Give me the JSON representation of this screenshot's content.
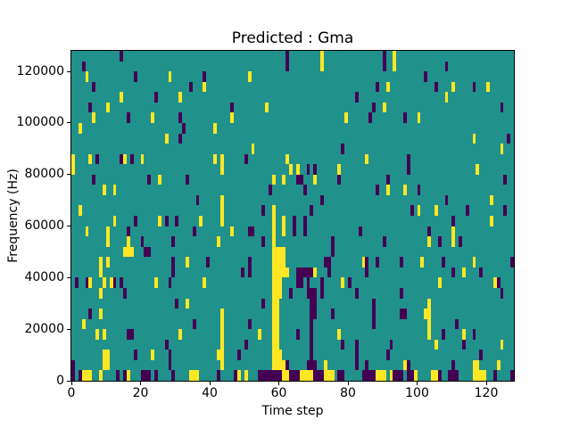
{
  "figure": {
    "title": "Predicted : Gma",
    "xlabel": "Time step",
    "ylabel": "Frequency (Hz)",
    "background_color": "#ffffff"
  },
  "chart_data": {
    "type": "heatmap",
    "title": "Predicted : Gma",
    "xlabel": "Time step",
    "ylabel": "Frequency (Hz)",
    "x_range": [
      0,
      128
    ],
    "y_range": [
      0,
      128000
    ],
    "x_ticks": [
      0,
      20,
      40,
      60,
      80,
      100,
      120
    ],
    "x_tick_labels": [
      "0",
      "20",
      "40",
      "60",
      "80",
      "100",
      "120"
    ],
    "y_ticks": [
      0,
      20000,
      40000,
      60000,
      80000,
      100000,
      120000
    ],
    "y_tick_labels": [
      "0",
      "20000",
      "40000",
      "60000",
      "80000",
      "100000",
      "120000"
    ],
    "grid": {
      "cols": 128,
      "rows": 32,
      "hz_per_row": 4000
    },
    "legend": "none",
    "gridlines": false,
    "colormap": {
      "name": "viridis-3-level",
      "background_value_color": "#21918c",
      "low": "#440154",
      "high": "#fde725"
    },
    "cells_high": [
      [
        72,
        31
      ],
      [
        93,
        31
      ],
      [
        72,
        30
      ],
      [
        93,
        30
      ],
      [
        4,
        29
      ],
      [
        28,
        29
      ],
      [
        51,
        29
      ],
      [
        38,
        28
      ],
      [
        91,
        28
      ],
      [
        110,
        28
      ],
      [
        120,
        28
      ],
      [
        14,
        27
      ],
      [
        31,
        27
      ],
      [
        108,
        27
      ],
      [
        10,
        26
      ],
      [
        56,
        26
      ],
      [
        90,
        26
      ],
      [
        6,
        25
      ],
      [
        23,
        25
      ],
      [
        46,
        25
      ],
      [
        79,
        25
      ],
      [
        100,
        25
      ],
      [
        2,
        24
      ],
      [
        41,
        24
      ],
      [
        27,
        23
      ],
      [
        116,
        23
      ],
      [
        52,
        22
      ],
      [
        124,
        22
      ],
      [
        0,
        21
      ],
      [
        5,
        21
      ],
      [
        15,
        21
      ],
      [
        20,
        21
      ],
      [
        41,
        21
      ],
      [
        43,
        21
      ],
      [
        62,
        21
      ],
      [
        85,
        21
      ],
      [
        0,
        20
      ],
      [
        43,
        20
      ],
      [
        63,
        20
      ],
      [
        65,
        20
      ],
      [
        77,
        20
      ],
      [
        117,
        20
      ],
      [
        25,
        19
      ],
      [
        58,
        19
      ],
      [
        61,
        19
      ],
      [
        70,
        19
      ],
      [
        9,
        18
      ],
      [
        12,
        18
      ],
      [
        91,
        18
      ],
      [
        96,
        18
      ],
      [
        43,
        17
      ],
      [
        121,
        17
      ],
      [
        2,
        16
      ],
      [
        43,
        16
      ],
      [
        58,
        16
      ],
      [
        100,
        16
      ],
      [
        105,
        16
      ],
      [
        12,
        15
      ],
      [
        25,
        15
      ],
      [
        37,
        15
      ],
      [
        43,
        15
      ],
      [
        58,
        15
      ],
      [
        61,
        15
      ],
      [
        121,
        15
      ],
      [
        4,
        14
      ],
      [
        10,
        14
      ],
      [
        46,
        14
      ],
      [
        58,
        14
      ],
      [
        61,
        14
      ],
      [
        110,
        14
      ],
      [
        10,
        13
      ],
      [
        16,
        13
      ],
      [
        42,
        13
      ],
      [
        58,
        13
      ],
      [
        103,
        13
      ],
      [
        110,
        13
      ],
      [
        15,
        12
      ],
      [
        16,
        12
      ],
      [
        17,
        12
      ],
      [
        58,
        12
      ],
      [
        59,
        12
      ],
      [
        60,
        12
      ],
      [
        61,
        12
      ],
      [
        8,
        11
      ],
      [
        10,
        11
      ],
      [
        33,
        11
      ],
      [
        58,
        11
      ],
      [
        59,
        11
      ],
      [
        60,
        11
      ],
      [
        61,
        11
      ],
      [
        84,
        11
      ],
      [
        101,
        11
      ],
      [
        116,
        11
      ],
      [
        8,
        10
      ],
      [
        58,
        10
      ],
      [
        59,
        10
      ],
      [
        60,
        10
      ],
      [
        61,
        10
      ],
      [
        62,
        10
      ],
      [
        70,
        10
      ],
      [
        113,
        10
      ],
      [
        5,
        9
      ],
      [
        9,
        9
      ],
      [
        11,
        9
      ],
      [
        24,
        9
      ],
      [
        38,
        9
      ],
      [
        58,
        9
      ],
      [
        59,
        9
      ],
      [
        60,
        9
      ],
      [
        78,
        9
      ],
      [
        106,
        9
      ],
      [
        122,
        9
      ],
      [
        8,
        8
      ],
      [
        58,
        8
      ],
      [
        59,
        8
      ],
      [
        60,
        8
      ],
      [
        33,
        7
      ],
      [
        58,
        7
      ],
      [
        59,
        7
      ],
      [
        103,
        7
      ],
      [
        8,
        6
      ],
      [
        43,
        6
      ],
      [
        58,
        6
      ],
      [
        59,
        6
      ],
      [
        102,
        6
      ],
      [
        103,
        6
      ],
      [
        3,
        5
      ],
      [
        43,
        5
      ],
      [
        58,
        5
      ],
      [
        59,
        5
      ],
      [
        103,
        5
      ],
      [
        7,
        4
      ],
      [
        9,
        4
      ],
      [
        31,
        4
      ],
      [
        43,
        4
      ],
      [
        54,
        4
      ],
      [
        58,
        4
      ],
      [
        59,
        4
      ],
      [
        77,
        4
      ],
      [
        103,
        4
      ],
      [
        113,
        4
      ],
      [
        43,
        3
      ],
      [
        58,
        3
      ],
      [
        59,
        3
      ],
      [
        105,
        3
      ],
      [
        124,
        3
      ],
      [
        9,
        2
      ],
      [
        10,
        2
      ],
      [
        23,
        2
      ],
      [
        42,
        2
      ],
      [
        43,
        2
      ],
      [
        58,
        2
      ],
      [
        59,
        2
      ],
      [
        60,
        2
      ],
      [
        9,
        1
      ],
      [
        10,
        1
      ],
      [
        43,
        1
      ],
      [
        58,
        1
      ],
      [
        59,
        1
      ],
      [
        60,
        1
      ],
      [
        61,
        1
      ],
      [
        73,
        1
      ],
      [
        96,
        1
      ],
      [
        116,
        1
      ],
      [
        117,
        1
      ],
      [
        123,
        1
      ],
      [
        3,
        0
      ],
      [
        4,
        0
      ],
      [
        5,
        0
      ],
      [
        8,
        0
      ],
      [
        16,
        0
      ],
      [
        34,
        0
      ],
      [
        35,
        0
      ],
      [
        36,
        0
      ],
      [
        48,
        0
      ],
      [
        50,
        0
      ],
      [
        61,
        0
      ],
      [
        62,
        0
      ],
      [
        66,
        0
      ],
      [
        67,
        0
      ],
      [
        68,
        0
      ],
      [
        69,
        0
      ],
      [
        73,
        0
      ],
      [
        74,
        0
      ],
      [
        75,
        0
      ],
      [
        88,
        0
      ],
      [
        89,
        0
      ],
      [
        90,
        0
      ],
      [
        92,
        0
      ],
      [
        99,
        0
      ],
      [
        104,
        0
      ],
      [
        105,
        0
      ],
      [
        116,
        0
      ],
      [
        117,
        0
      ],
      [
        118,
        0
      ],
      [
        119,
        0
      ]
    ],
    "cells_low": [
      [
        14,
        31
      ],
      [
        62,
        31
      ],
      [
        90,
        31
      ],
      [
        3,
        30
      ],
      [
        62,
        30
      ],
      [
        90,
        30
      ],
      [
        108,
        30
      ],
      [
        18,
        29
      ],
      [
        38,
        29
      ],
      [
        102,
        29
      ],
      [
        6,
        28
      ],
      [
        34,
        28
      ],
      [
        88,
        28
      ],
      [
        105,
        28
      ],
      [
        116,
        28
      ],
      [
        24,
        27
      ],
      [
        82,
        27
      ],
      [
        5,
        26
      ],
      [
        46,
        26
      ],
      [
        87,
        26
      ],
      [
        124,
        26
      ],
      [
        16,
        25
      ],
      [
        31,
        25
      ],
      [
        86,
        25
      ],
      [
        96,
        25
      ],
      [
        32,
        24
      ],
      [
        31,
        23
      ],
      [
        126,
        23
      ],
      [
        78,
        22
      ],
      [
        7,
        21
      ],
      [
        14,
        21
      ],
      [
        17,
        21
      ],
      [
        50,
        21
      ],
      [
        97,
        21
      ],
      [
        68,
        20
      ],
      [
        70,
        20
      ],
      [
        97,
        20
      ],
      [
        6,
        19
      ],
      [
        22,
        19
      ],
      [
        33,
        19
      ],
      [
        65,
        19
      ],
      [
        66,
        19
      ],
      [
        77,
        19
      ],
      [
        91,
        19
      ],
      [
        125,
        19
      ],
      [
        57,
        18
      ],
      [
        67,
        18
      ],
      [
        88,
        18
      ],
      [
        100,
        18
      ],
      [
        36,
        17
      ],
      [
        72,
        17
      ],
      [
        108,
        17
      ],
      [
        55,
        16
      ],
      [
        69,
        16
      ],
      [
        98,
        16
      ],
      [
        114,
        16
      ],
      [
        125,
        16
      ],
      [
        18,
        15
      ],
      [
        27,
        15
      ],
      [
        30,
        15
      ],
      [
        64,
        15
      ],
      [
        67,
        15
      ],
      [
        110,
        15
      ],
      [
        16,
        14
      ],
      [
        35,
        14
      ],
      [
        51,
        14
      ],
      [
        52,
        14
      ],
      [
        64,
        14
      ],
      [
        67,
        14
      ],
      [
        83,
        14
      ],
      [
        103,
        14
      ],
      [
        20,
        13
      ],
      [
        29,
        13
      ],
      [
        55,
        13
      ],
      [
        75,
        13
      ],
      [
        90,
        13
      ],
      [
        106,
        13
      ],
      [
        112,
        13
      ],
      [
        21,
        12
      ],
      [
        22,
        12
      ],
      [
        75,
        12
      ],
      [
        29,
        11
      ],
      [
        39,
        11
      ],
      [
        51,
        11
      ],
      [
        73,
        11
      ],
      [
        74,
        11
      ],
      [
        85,
        11
      ],
      [
        88,
        11
      ],
      [
        95,
        11
      ],
      [
        107,
        11
      ],
      [
        127,
        11
      ],
      [
        29,
        10
      ],
      [
        49,
        10
      ],
      [
        51,
        10
      ],
      [
        65,
        10
      ],
      [
        66,
        10
      ],
      [
        67,
        10
      ],
      [
        68,
        10
      ],
      [
        69,
        10
      ],
      [
        74,
        10
      ],
      [
        85,
        10
      ],
      [
        110,
        10
      ],
      [
        118,
        10
      ],
      [
        1,
        9
      ],
      [
        4,
        9
      ],
      [
        12,
        9
      ],
      [
        14,
        9
      ],
      [
        28,
        9
      ],
      [
        65,
        9
      ],
      [
        66,
        9
      ],
      [
        68,
        9
      ],
      [
        72,
        9
      ],
      [
        80,
        9
      ],
      [
        123,
        9
      ],
      [
        15,
        8
      ],
      [
        63,
        8
      ],
      [
        68,
        8
      ],
      [
        69,
        8
      ],
      [
        70,
        8
      ],
      [
        72,
        8
      ],
      [
        82,
        8
      ],
      [
        95,
        8
      ],
      [
        124,
        8
      ],
      [
        30,
        7
      ],
      [
        55,
        7
      ],
      [
        69,
        7
      ],
      [
        70,
        7
      ],
      [
        87,
        7
      ],
      [
        5,
        6
      ],
      [
        69,
        6
      ],
      [
        70,
        6
      ],
      [
        75,
        6
      ],
      [
        87,
        6
      ],
      [
        95,
        6
      ],
      [
        96,
        6
      ],
      [
        35,
        5
      ],
      [
        51,
        5
      ],
      [
        69,
        5
      ],
      [
        87,
        5
      ],
      [
        111,
        5
      ],
      [
        16,
        4
      ],
      [
        17,
        4
      ],
      [
        65,
        4
      ],
      [
        69,
        4
      ],
      [
        107,
        4
      ],
      [
        116,
        4
      ],
      [
        27,
        3
      ],
      [
        50,
        3
      ],
      [
        69,
        3
      ],
      [
        78,
        3
      ],
      [
        82,
        3
      ],
      [
        92,
        3
      ],
      [
        113,
        3
      ],
      [
        18,
        2
      ],
      [
        28,
        2
      ],
      [
        48,
        2
      ],
      [
        69,
        2
      ],
      [
        82,
        2
      ],
      [
        91,
        2
      ],
      [
        118,
        2
      ],
      [
        0,
        1
      ],
      [
        28,
        1
      ],
      [
        62,
        1
      ],
      [
        68,
        1
      ],
      [
        69,
        1
      ],
      [
        70,
        1
      ],
      [
        82,
        1
      ],
      [
        85,
        1
      ],
      [
        97,
        1
      ],
      [
        110,
        1
      ],
      [
        0,
        0
      ],
      [
        2,
        0
      ],
      [
        13,
        0
      ],
      [
        15,
        0
      ],
      [
        20,
        0
      ],
      [
        21,
        0
      ],
      [
        22,
        0
      ],
      [
        24,
        0
      ],
      [
        29,
        0
      ],
      [
        42,
        0
      ],
      [
        47,
        0
      ],
      [
        54,
        0
      ],
      [
        55,
        0
      ],
      [
        56,
        0
      ],
      [
        57,
        0
      ],
      [
        58,
        0
      ],
      [
        59,
        0
      ],
      [
        60,
        0
      ],
      [
        63,
        0
      ],
      [
        64,
        0
      ],
      [
        65,
        0
      ],
      [
        70,
        0
      ],
      [
        71,
        0
      ],
      [
        72,
        0
      ],
      [
        77,
        0
      ],
      [
        78,
        0
      ],
      [
        84,
        0
      ],
      [
        85,
        0
      ],
      [
        86,
        0
      ],
      [
        87,
        0
      ],
      [
        93,
        0
      ],
      [
        94,
        0
      ],
      [
        95,
        0
      ],
      [
        97,
        0
      ],
      [
        98,
        0
      ],
      [
        106,
        0
      ],
      [
        109,
        0
      ],
      [
        110,
        0
      ],
      [
        111,
        0
      ],
      [
        122,
        0
      ],
      [
        127,
        0
      ]
    ]
  }
}
